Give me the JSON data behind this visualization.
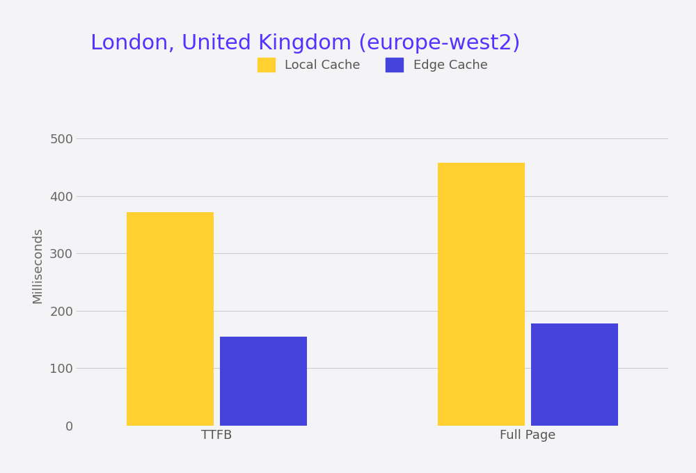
{
  "title": "London, United Kingdom (europe-west2)",
  "title_color": "#5533ff",
  "title_fontsize": 22,
  "ylabel": "Milliseconds",
  "ylabel_fontsize": 13,
  "ylabel_color": "#666666",
  "categories": [
    "TTFB",
    "Full Page"
  ],
  "local_cache_values": [
    372,
    458
  ],
  "edge_cache_values": [
    155,
    178
  ],
  "local_cache_color": "#FFD030",
  "edge_cache_color": "#4444DD",
  "legend_labels": [
    "Local Cache",
    "Edge Cache"
  ],
  "bar_width": 0.28,
  "group_positions": [
    0.28,
    0.78
  ],
  "ylim": [
    0,
    560
  ],
  "yticks": [
    0,
    100,
    200,
    300,
    400,
    500
  ],
  "tick_label_fontsize": 13,
  "x_tick_fontsize": 13,
  "background_color": "#f4f4f6",
  "grid_color": "#cccccc",
  "legend_fontsize": 13,
  "legend_label_color": "#555555"
}
